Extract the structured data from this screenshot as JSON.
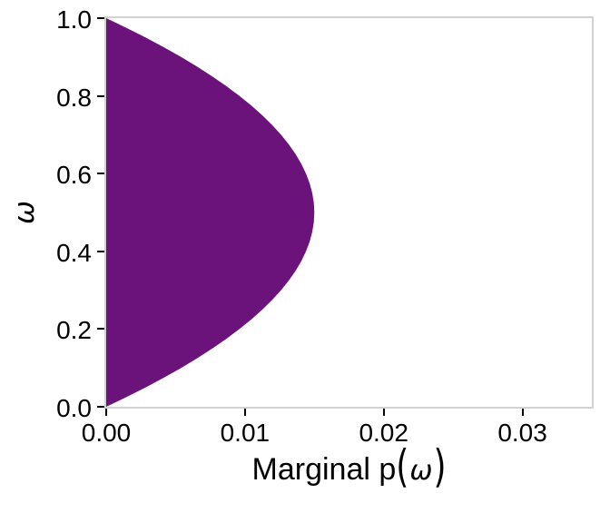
{
  "chart_data": {
    "type": "area",
    "orientation": "horizontal",
    "title": "",
    "xlabel": "Marginal p(ω)",
    "xlabel_parts": {
      "prefix": "Marginal p",
      "open": "(",
      "symbol": "ω",
      "close": ")"
    },
    "ylabel": "ω",
    "xlim": [
      0,
      0.035
    ],
    "ylim": [
      0,
      1
    ],
    "grid": false,
    "legend": "none",
    "x_ticks": {
      "values": [
        0,
        0.01,
        0.02,
        0.03
      ],
      "labels": [
        "0.00",
        "0.01",
        "0.02",
        "0.03"
      ]
    },
    "y_ticks": {
      "values": [
        0,
        0.2,
        0.4,
        0.6,
        0.8,
        1.0
      ],
      "labels": [
        "0.0",
        "0.2",
        "0.4",
        "0.6",
        "0.8",
        "1.0"
      ]
    },
    "colors": {
      "fill": "#6B127B",
      "panel_border": "#d2d2d2",
      "tick": "#000000",
      "text": "#000000",
      "background": "#ffffff"
    },
    "series": [
      {
        "name": "marginal-p-omega",
        "peak": {
          "omega": 0.5,
          "p": 0.015
        },
        "omega": [
          0,
          0.025,
          0.05,
          0.075,
          0.1,
          0.125,
          0.15,
          0.175,
          0.2,
          0.225,
          0.25,
          0.275,
          0.3,
          0.325,
          0.35,
          0.375,
          0.4,
          0.425,
          0.45,
          0.475,
          0.5,
          0.525,
          0.55,
          0.575,
          0.6,
          0.625,
          0.65,
          0.675,
          0.7,
          0.725,
          0.75,
          0.775,
          0.8,
          0.825,
          0.85,
          0.875,
          0.9,
          0.925,
          0.95,
          0.975,
          1
        ],
        "p": [
          0,
          0.001463,
          0.00285,
          0.004163,
          0.0054,
          0.006563,
          0.00765,
          0.008663,
          0.0096,
          0.010463,
          0.01125,
          0.011963,
          0.0126,
          0.013163,
          0.01365,
          0.014063,
          0.0144,
          0.014663,
          0.01485,
          0.014963,
          0.015,
          0.014963,
          0.01485,
          0.014663,
          0.0144,
          0.014063,
          0.01365,
          0.013163,
          0.0126,
          0.011963,
          0.01125,
          0.010463,
          0.0096,
          0.008663,
          0.00765,
          0.006563,
          0.0054,
          0.004163,
          0.00285,
          0.001463,
          0
        ]
      }
    ]
  }
}
